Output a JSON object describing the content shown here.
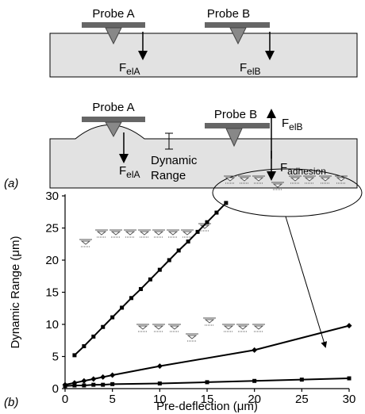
{
  "panel_a": {
    "label": "(a)",
    "top": {
      "probe_a": "Probe A",
      "probe_b": "Probe B",
      "force_a": {
        "symbol": "F",
        "subscript": "elA"
      },
      "force_b": {
        "symbol": "F",
        "subscript": "elB"
      }
    },
    "bottom": {
      "probe_a": "Probe A",
      "probe_b": "Probe B",
      "force_a": {
        "symbol": "F",
        "subscript": "elA"
      },
      "force_b": {
        "symbol": "F",
        "subscript": "elB"
      },
      "force_adhesion": {
        "symbol": "F",
        "subscript": "adhesion"
      },
      "dynamic_range": [
        "Dynamic",
        "Range"
      ]
    }
  },
  "chart_data": {
    "type": "line",
    "panel_label": "(b)",
    "x_label": "Pre-deflection (μm)",
    "y_label": "Dynamic Range (μm)",
    "xlim": [
      0,
      30
    ],
    "ylim": [
      0,
      30
    ],
    "xticks": [
      0,
      5,
      10,
      15,
      20,
      25,
      30
    ],
    "yticks": [
      0,
      5,
      10,
      15,
      20,
      25,
      30
    ],
    "series": [
      {
        "color": "#000000",
        "marker": "square",
        "x": [
          1,
          2,
          3,
          4,
          5,
          6,
          7,
          8,
          9,
          10,
          11,
          12,
          13,
          14,
          15,
          16,
          17
        ],
        "values": [
          5.2,
          6.6,
          8.1,
          9.6,
          11.1,
          12.6,
          14.1,
          15.5,
          17.0,
          18.5,
          20.0,
          21.5,
          22.9,
          24.4,
          25.9,
          27.4,
          28.9
        ]
      },
      {
        "color": "#000000",
        "marker": "diamond",
        "x": [
          0,
          1,
          2,
          3,
          4,
          5,
          10,
          20,
          30
        ],
        "values": [
          0.6,
          0.9,
          1.2,
          1.5,
          1.8,
          2.1,
          3.5,
          6.0,
          9.8
        ]
      },
      {
        "color": "#000000",
        "marker": "square",
        "x": [
          0,
          1,
          2,
          3,
          4,
          5,
          10,
          15,
          20,
          25,
          30
        ],
        "values": [
          0.4,
          0.5,
          0.5,
          0.6,
          0.6,
          0.7,
          0.8,
          1.0,
          1.2,
          1.4,
          1.6
        ]
      }
    ]
  }
}
